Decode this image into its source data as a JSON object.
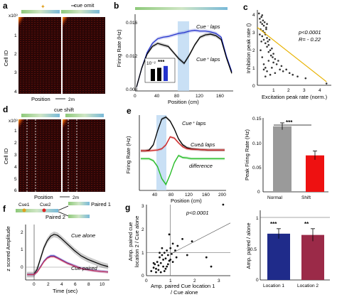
{
  "panels": {
    "a": {
      "letter": "a",
      "cue_label": "cue omit",
      "y_label": "Cell ID",
      "y_ticks": [
        "x10³",
        "1",
        "2",
        "3",
        "4"
      ],
      "x_label": "Position",
      "scale_label": "2m"
    },
    "b": {
      "letter": "b",
      "series_minus": "Cue⁻ laps",
      "series_plus": "Cue⁺ laps",
      "y_label": "Firing Rate (Hz)",
      "y_ticks": [
        "0.016",
        "0.012",
        "0.008"
      ],
      "x_label": "Position (cm)",
      "x_ticks": [
        "0",
        "40",
        "80",
        "120",
        "160"
      ],
      "inset_tick": "10⁻²",
      "inset_stars": "***"
    },
    "c": {
      "letter": "c",
      "p_text": "p<0.0001",
      "r_text": "R= - 0.22",
      "y_label": "Inhibition peak rate ()",
      "y_ticks": [
        "0",
        "1",
        "2",
        "3",
        "4"
      ],
      "x_label": "Excitation peak rate (norm.)",
      "x_ticks": [
        "1",
        "2",
        "3",
        "4"
      ]
    },
    "d": {
      "letter": "d",
      "cue_label": "cue shift",
      "y_label": "Cell ID",
      "y_ticks": [
        "x10³",
        "1",
        "2",
        "3",
        "4",
        "5",
        "6"
      ],
      "x_label": "Position",
      "scale_label": "2m"
    },
    "e": {
      "letter": "e",
      "series_plus": "Cue⁺ laps",
      "series_shift": "CueΔ laps",
      "series_diff": "difference",
      "y_label": "Firing Rate (Hz)",
      "x_label": "Position (cm)",
      "x_ticks": [
        "40",
        "80",
        "120",
        "160",
        "200"
      ]
    },
    "e_bar": {
      "y_label": "Peak Firing Rate (Hz)",
      "y_ticks": [
        "0.15",
        "0.10",
        "0.05",
        "0"
      ],
      "categories": [
        "Normal",
        "Shift"
      ],
      "stars": "***"
    },
    "f": {
      "letter": "f",
      "cue1": "Cue1",
      "cue2": "Cue2",
      "paired1": "Paired 1",
      "paired2": "Paired 2",
      "y_label": "z scored Amplitude",
      "y_ticks": [
        "2",
        "1",
        "0"
      ],
      "x_label": "Time (sec)",
      "x_ticks": [
        "0",
        "2",
        "4",
        "6",
        "8",
        "10"
      ],
      "series_alone": "Cue alone",
      "series_paired": "Cue paired"
    },
    "g": {
      "letter": "g",
      "p_text": "p<0.0001",
      "y_label_1": "Amp. paired cue",
      "y_label_2": "location 2 / Cue alone",
      "x_label_1": "Amp. paired Cue location 1",
      "x_label_2": "/ Cue alone",
      "y_ticks": [
        "3",
        "2",
        "1",
        "0"
      ],
      "x_ticks": [
        "0",
        "1",
        "2",
        "3"
      ]
    },
    "g_bar": {
      "y_label": "Amp. paired / alone",
      "y_ticks": [
        "1",
        "0.5",
        "0"
      ],
      "categories": [
        "Location 1",
        "Location 2"
      ],
      "stars_1": "***",
      "stars_2": "**"
    }
  },
  "chart_data": [
    {
      "type": "heatmap",
      "title": "",
      "rows_label": "Cell ID",
      "cols_label": "Position",
      "note": "cue omit",
      "cells_thousands_range": [
        0,
        4
      ]
    },
    {
      "type": "line",
      "xlabel": "Position (cm)",
      "ylabel": "Firing Rate (Hz)",
      "xlim": [
        0,
        180
      ],
      "ylim": [
        0.008,
        0.018
      ],
      "x": [
        0,
        10,
        20,
        30,
        40,
        50,
        60,
        70,
        80,
        90,
        100,
        110,
        120,
        130,
        140,
        150,
        160,
        170,
        180
      ],
      "series": [
        {
          "name": "Cue⁻ laps",
          "color": "#2433cc",
          "values": [
            0.0085,
            0.011,
            0.013,
            0.0142,
            0.0148,
            0.015,
            0.0151,
            0.0153,
            0.0155,
            0.0156,
            0.0158,
            0.0159,
            0.0158,
            0.0158,
            0.0157,
            0.0155,
            0.015,
            0.0125,
            0.0105
          ]
        },
        {
          "name": "Cue⁺ laps",
          "color": "#000000",
          "values": [
            0.0085,
            0.011,
            0.0128,
            0.0138,
            0.0142,
            0.014,
            0.0138,
            0.013,
            0.0122,
            0.0116,
            0.0127,
            0.014,
            0.015,
            0.0153,
            0.0154,
            0.0152,
            0.0147,
            0.0123,
            0.0103
          ]
        }
      ],
      "inset": {
        "type": "bar",
        "values": [
          1.0,
          1.1,
          1.25
        ],
        "stars": "***"
      }
    },
    {
      "type": "scatter",
      "xlabel": "Excitation peak rate (norm.)",
      "ylabel": "Inhibition peak rate ()",
      "xlim": [
        0,
        4.5
      ],
      "ylim": [
        0,
        4.3
      ],
      "fit": {
        "x": [
          0,
          4.3
        ],
        "y": [
          3.3,
          0.2
        ]
      },
      "p": "p<0.0001",
      "R": -0.22,
      "x": [
        0.1,
        0.15,
        0.2,
        0.2,
        0.25,
        0.3,
        0.3,
        0.35,
        0.4,
        0.4,
        0.45,
        0.5,
        0.5,
        0.55,
        0.6,
        0.6,
        0.65,
        0.7,
        0.7,
        0.75,
        0.8,
        0.85,
        0.9,
        0.95,
        1.0,
        1.0,
        1.1,
        1.2,
        1.3,
        1.4,
        1.5,
        1.6,
        1.8,
        2.0,
        2.2,
        2.5,
        3.0,
        4.3,
        0.2,
        0.3,
        0.4,
        0.5,
        0.6,
        0.7,
        0.8,
        0.3,
        0.35,
        0.45,
        0.55,
        0.25,
        0.15,
        0.6,
        0.9,
        1.1,
        0.5,
        0.4
      ],
      "y": [
        4.1,
        3.8,
        3.6,
        3.2,
        3.9,
        3.5,
        2.8,
        3.1,
        3.4,
        2.6,
        3.0,
        2.9,
        2.4,
        3.2,
        2.7,
        2.2,
        2.5,
        2.3,
        1.9,
        2.6,
        2.0,
        1.7,
        2.1,
        1.6,
        1.8,
        1.3,
        1.5,
        1.2,
        1.4,
        0.9,
        1.1,
        0.8,
        0.9,
        0.7,
        0.6,
        0.5,
        0.4,
        0.1,
        2.0,
        1.6,
        1.2,
        1.0,
        0.8,
        1.4,
        0.6,
        4.0,
        3.7,
        3.6,
        3.3,
        2.5,
        2.9,
        3.5,
        1.0,
        0.7,
        0.5,
        0.9
      ]
    },
    {
      "type": "heatmap",
      "rows_label": "Cell ID",
      "cols_label": "Position",
      "note": "cue shift",
      "cells_thousands_range": [
        0,
        6
      ]
    },
    {
      "type": "line",
      "xlabel": "Position (cm)",
      "ylabel": "Firing Rate (Hz)",
      "xlim": [
        0,
        200
      ],
      "x": [
        0,
        10,
        20,
        30,
        40,
        50,
        60,
        70,
        80,
        90,
        100,
        110,
        120,
        140,
        160,
        180,
        200
      ],
      "series": [
        {
          "name": "Cue⁺ laps",
          "color": "#000000",
          "values": [
            0.2,
            0.2,
            0.22,
            0.35,
            0.7,
            1.0,
            1.05,
            0.95,
            0.75,
            0.5,
            0.35,
            0.28,
            0.25,
            0.23,
            0.22,
            0.22,
            0.22
          ]
        },
        {
          "name": "CueΔ laps",
          "color": "#cc2222",
          "values": [
            0.2,
            0.2,
            0.2,
            0.21,
            0.22,
            0.25,
            0.35,
            0.55,
            0.52,
            0.4,
            0.3,
            0.25,
            0.24,
            0.23,
            0.22,
            0.22,
            0.22
          ]
        },
        {
          "name": "difference",
          "color": "#22bb22",
          "values": [
            0.0,
            0.0,
            0.0,
            -0.05,
            -0.2,
            -0.5,
            -0.65,
            -0.4,
            -0.1,
            0.08,
            0.03,
            0.02,
            0.0,
            0.0,
            0.0,
            0.0,
            0.0
          ]
        }
      ]
    },
    {
      "type": "bar",
      "ylabel": "Peak Firing Rate (Hz)",
      "categories": [
        "Normal",
        "Shift"
      ],
      "values": [
        0.133,
        0.074
      ],
      "errors": [
        0.007,
        0.009
      ],
      "ylim": [
        0,
        0.15
      ],
      "colors": [
        "#9a9a9a",
        "#ee1111"
      ]
    },
    {
      "type": "line",
      "xlabel": "Time (sec)",
      "ylabel": "z scored Amplitude",
      "xlim": [
        -1,
        11
      ],
      "ylim": [
        -0.3,
        2.8
      ],
      "x": [
        -1,
        0,
        0.5,
        1,
        1.5,
        2,
        2.5,
        3,
        3.5,
        4,
        5,
        6,
        7,
        8,
        9,
        10,
        11
      ],
      "series": [
        {
          "name": "Cue alone",
          "color": "#000000",
          "values": [
            0,
            0,
            0.3,
            0.9,
            1.5,
            1.9,
            2.15,
            2.25,
            2.2,
            2.05,
            1.7,
            1.35,
            1.05,
            0.85,
            0.7,
            0.55,
            0.45
          ]
        },
        {
          "name": "Cue paired",
          "color": "#2433cc",
          "values": [
            0,
            0,
            0.15,
            0.45,
            0.75,
            0.95,
            1.05,
            1.05,
            0.95,
            0.85,
            0.65,
            0.5,
            0.35,
            0.28,
            0.22,
            0.18,
            0.15
          ]
        },
        {
          "name": "",
          "color": "#cc3355",
          "values": [
            0,
            0,
            0.14,
            0.42,
            0.72,
            0.92,
            1.0,
            1.0,
            0.92,
            0.82,
            0.62,
            0.48,
            0.34,
            0.27,
            0.21,
            0.17,
            0.14
          ]
        }
      ]
    },
    {
      "type": "scatter",
      "xlabel": "Amp. paired Cue location 1 / Cue alone",
      "ylabel": "Amp. paired cue location 2 / Cue alone",
      "xlim": [
        0,
        3.5
      ],
      "ylim": [
        0,
        3.7
      ],
      "p": "p<0.0001",
      "fit": {
        "x": [
          1.1,
          3.5
        ],
        "y": [
          1.0,
          2.3
        ]
      },
      "x": [
        0.2,
        0.3,
        0.35,
        0.4,
        0.45,
        0.5,
        0.55,
        0.6,
        0.65,
        0.7,
        0.75,
        0.8,
        0.85,
        0.9,
        0.95,
        1.0,
        1.05,
        1.1,
        1.2,
        1.3,
        1.5,
        1.7,
        1.9,
        2.5,
        3.2,
        0.5,
        0.6,
        0.7,
        0.8,
        0.9,
        1.0,
        1.1,
        0.4,
        0.3,
        0.55,
        0.75,
        0.65,
        0.85,
        1.25,
        0.95,
        2.7
      ],
      "y": [
        0.2,
        0.35,
        0.5,
        0.3,
        0.6,
        0.45,
        0.8,
        0.55,
        0.9,
        0.7,
        1.0,
        0.75,
        1.1,
        0.9,
        0.65,
        1.2,
        0.95,
        1.4,
        1.1,
        1.3,
        1.6,
        0.9,
        1.5,
        0.8,
        3.4,
        0.25,
        0.15,
        0.4,
        0.3,
        0.5,
        0.7,
        0.6,
        0.15,
        0.55,
        1.0,
        0.2,
        1.2,
        0.4,
        0.8,
        1.8,
        0.4
      ]
    },
    {
      "type": "bar",
      "ylabel": "Amp. paired / alone",
      "categories": [
        "Location 1",
        "Location 2"
      ],
      "values": [
        0.74,
        0.72
      ],
      "errors": [
        0.08,
        0.1
      ],
      "ylim": [
        0,
        1.0
      ],
      "colors": [
        "#1f2b8a",
        "#9b2a48"
      ]
    }
  ]
}
